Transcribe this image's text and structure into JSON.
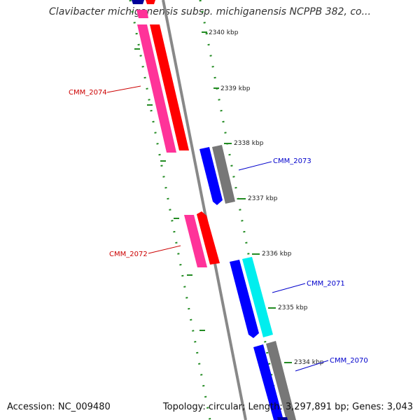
{
  "title": "Clavibacter michiganensis subsp. michiganensis NCPPB 382, co...",
  "footer": {
    "accession": "Accession: NC_009480",
    "summary": "Topology: circular; Length: 3,297,891 bp; Genes: 3,043"
  },
  "colors": {
    "forward_cds": "#ff0000",
    "forward_gene": "#ff3399",
    "reverse_cds": "#0000ff",
    "reverse_gene": "#00eeee",
    "other_gene": "#777777",
    "dark_feature": "#000099",
    "backbone": "#888888",
    "ticks": "#228b22",
    "label_forward": "#cc0000",
    "label_reverse": "#0000cc"
  },
  "ticks": [
    {
      "label": "2340 kbp"
    },
    {
      "label": "2339 kbp"
    },
    {
      "label": "2338 kbp"
    },
    {
      "label": "2337 kbp"
    },
    {
      "label": "2336 kbp"
    },
    {
      "label": "2335 kbp"
    },
    {
      "label": "2334 kbp"
    }
  ],
  "genes": [
    {
      "label": "CMM_2074",
      "strand": "forward"
    },
    {
      "label": "CMM_2073",
      "strand": "reverse"
    },
    {
      "label": "CMM_2072",
      "strand": "forward"
    },
    {
      "label": "CMM_2071",
      "strand": "reverse"
    },
    {
      "label": "CMM_2070",
      "strand": "reverse"
    }
  ],
  "legend_icons": [
    "backbone-line-icon",
    "tick-mark-icon",
    "gene-arrow-icon"
  ]
}
